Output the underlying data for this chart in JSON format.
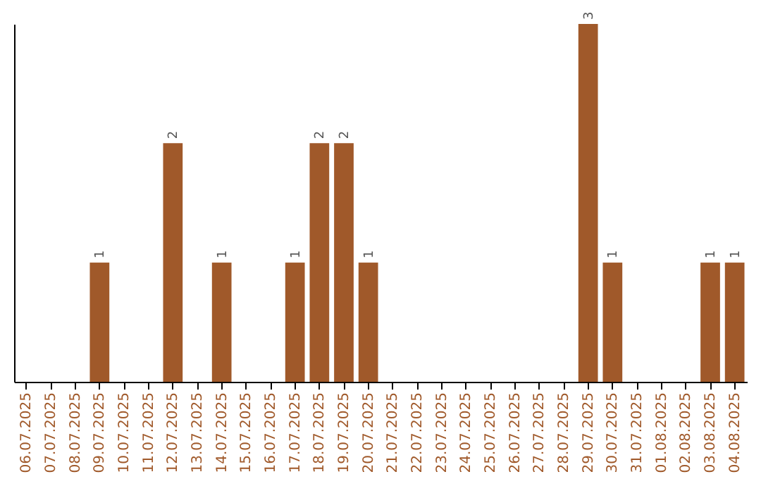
{
  "chart_data": {
    "type": "bar",
    "categories": [
      "06.07.2025",
      "07.07.2025",
      "08.07.2025",
      "09.07.2025",
      "10.07.2025",
      "11.07.2025",
      "12.07.2025",
      "13.07.2025",
      "14.07.2025",
      "15.07.2025",
      "16.07.2025",
      "17.07.2025",
      "18.07.2025",
      "19.07.2025",
      "20.07.2025",
      "21.07.2025",
      "22.07.2025",
      "23.07.2025",
      "24.07.2025",
      "25.07.2025",
      "26.07.2025",
      "27.07.2025",
      "28.07.2025",
      "29.07.2025",
      "30.07.2025",
      "31.07.2025",
      "01.08.2025",
      "02.08.2025",
      "03.08.2025",
      "04.08.2025"
    ],
    "values": [
      0,
      0,
      0,
      1,
      0,
      0,
      2,
      0,
      1,
      0,
      0,
      1,
      2,
      2,
      1,
      0,
      0,
      0,
      0,
      0,
      0,
      0,
      0,
      3,
      1,
      0,
      0,
      0,
      1,
      1
    ],
    "value_labels": [
      null,
      null,
      null,
      "1",
      null,
      null,
      "2",
      null,
      "1",
      null,
      null,
      "1",
      "2",
      "2",
      "1",
      null,
      null,
      null,
      null,
      null,
      null,
      null,
      null,
      "3",
      "1",
      null,
      null,
      null,
      "1",
      "1"
    ],
    "color": "#a0592a",
    "grid": false,
    "tick_labels": "x"
  }
}
